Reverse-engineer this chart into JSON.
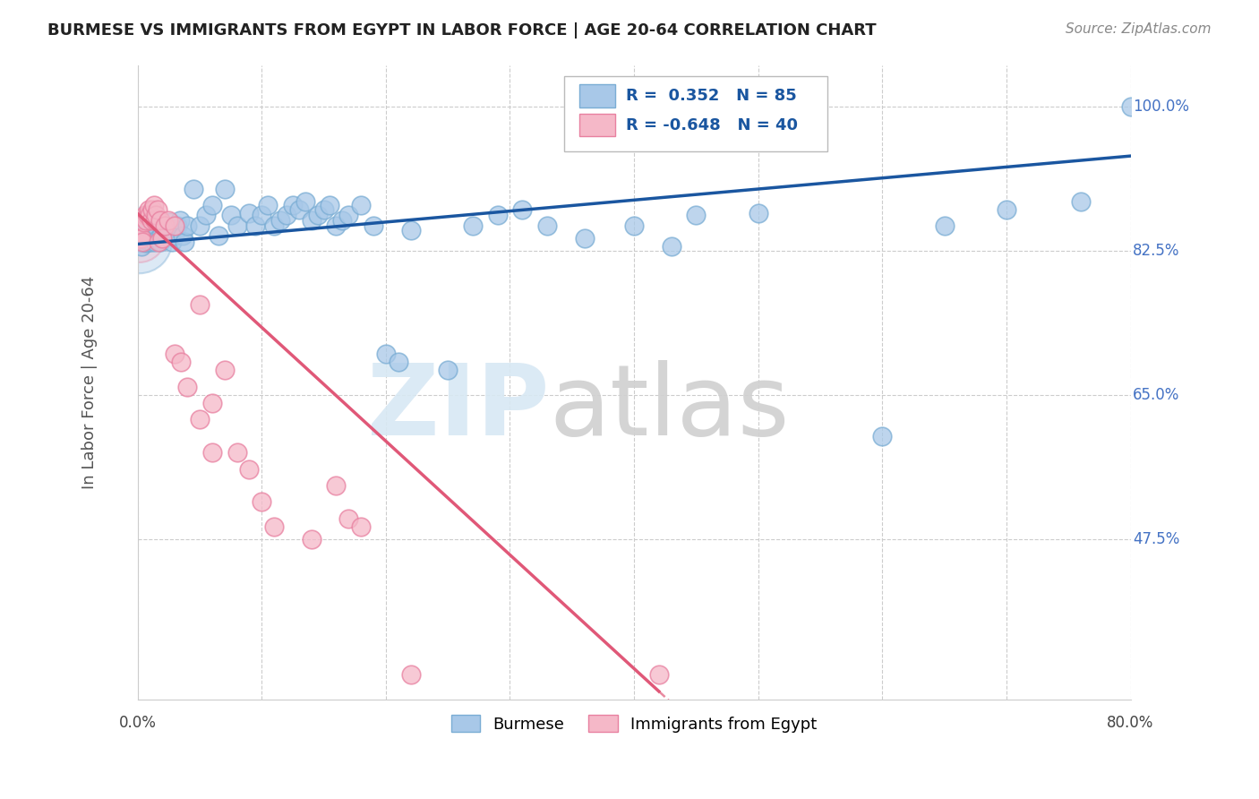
{
  "title": "BURMESE VS IMMIGRANTS FROM EGYPT IN LABOR FORCE | AGE 20-64 CORRELATION CHART",
  "source": "Source: ZipAtlas.com",
  "ylabel": "In Labor Force | Age 20-64",
  "x_lim": [
    0.0,
    0.8
  ],
  "y_lim": [
    0.28,
    1.05
  ],
  "blue_R": 0.352,
  "blue_N": 85,
  "pink_R": -0.648,
  "pink_N": 40,
  "blue_color": "#a8c8e8",
  "blue_edge_color": "#7aadd4",
  "blue_line_color": "#1a56a0",
  "pink_color": "#f5b8c8",
  "pink_edge_color": "#e880a0",
  "pink_line_color": "#e05878",
  "legend_blue_label": "Burmese",
  "legend_pink_label": "Immigrants from Egypt",
  "blue_scatter_x": [
    0.001,
    0.002,
    0.003,
    0.003,
    0.004,
    0.004,
    0.005,
    0.005,
    0.005,
    0.006,
    0.006,
    0.007,
    0.007,
    0.008,
    0.008,
    0.009,
    0.009,
    0.01,
    0.01,
    0.011,
    0.011,
    0.012,
    0.013,
    0.014,
    0.015,
    0.016,
    0.017,
    0.018,
    0.019,
    0.02,
    0.022,
    0.024,
    0.026,
    0.028,
    0.03,
    0.032,
    0.034,
    0.036,
    0.038,
    0.04,
    0.045,
    0.05,
    0.055,
    0.06,
    0.065,
    0.07,
    0.075,
    0.08,
    0.09,
    0.095,
    0.1,
    0.105,
    0.11,
    0.115,
    0.12,
    0.125,
    0.13,
    0.135,
    0.14,
    0.145,
    0.15,
    0.155,
    0.16,
    0.165,
    0.17,
    0.18,
    0.19,
    0.2,
    0.21,
    0.22,
    0.25,
    0.27,
    0.29,
    0.31,
    0.33,
    0.36,
    0.4,
    0.43,
    0.45,
    0.5,
    0.6,
    0.65,
    0.7,
    0.76,
    0.8
  ],
  "blue_scatter_y": [
    0.84,
    0.836,
    0.83,
    0.845,
    0.838,
    0.844,
    0.836,
    0.84,
    0.838,
    0.843,
    0.838,
    0.84,
    0.835,
    0.842,
    0.838,
    0.843,
    0.836,
    0.838,
    0.842,
    0.839,
    0.836,
    0.843,
    0.845,
    0.836,
    0.855,
    0.862,
    0.84,
    0.836,
    0.843,
    0.84,
    0.855,
    0.843,
    0.86,
    0.836,
    0.843,
    0.855,
    0.862,
    0.843,
    0.836,
    0.855,
    0.9,
    0.855,
    0.868,
    0.88,
    0.843,
    0.9,
    0.868,
    0.855,
    0.87,
    0.855,
    0.868,
    0.88,
    0.855,
    0.862,
    0.868,
    0.88,
    0.875,
    0.885,
    0.862,
    0.868,
    0.875,
    0.88,
    0.855,
    0.862,
    0.868,
    0.88,
    0.855,
    0.7,
    0.69,
    0.85,
    0.68,
    0.855,
    0.868,
    0.875,
    0.855,
    0.84,
    0.855,
    0.83,
    0.868,
    0.87,
    0.6,
    0.855,
    0.875,
    0.885,
    1.0
  ],
  "pink_scatter_x": [
    0.001,
    0.002,
    0.003,
    0.004,
    0.005,
    0.006,
    0.007,
    0.008,
    0.009,
    0.01,
    0.011,
    0.012,
    0.013,
    0.014,
    0.015,
    0.016,
    0.017,
    0.018,
    0.02,
    0.022,
    0.025,
    0.03,
    0.035,
    0.04,
    0.05,
    0.06,
    0.07,
    0.08,
    0.09,
    0.1,
    0.11,
    0.14,
    0.16,
    0.17,
    0.18,
    0.03,
    0.05,
    0.06,
    0.22,
    0.42
  ],
  "pink_scatter_y": [
    0.84,
    0.84,
    0.84,
    0.836,
    0.86,
    0.868,
    0.862,
    0.868,
    0.875,
    0.868,
    0.862,
    0.875,
    0.88,
    0.862,
    0.868,
    0.875,
    0.836,
    0.862,
    0.84,
    0.855,
    0.862,
    0.7,
    0.69,
    0.66,
    0.76,
    0.64,
    0.68,
    0.58,
    0.56,
    0.52,
    0.49,
    0.475,
    0.54,
    0.5,
    0.49,
    0.855,
    0.62,
    0.58,
    0.31,
    0.31
  ],
  "y_tick_vals": [
    0.475,
    0.65,
    0.825,
    1.0
  ],
  "y_tick_labels": [
    "47.5%",
    "65.0%",
    "82.5%",
    "100.0%"
  ]
}
